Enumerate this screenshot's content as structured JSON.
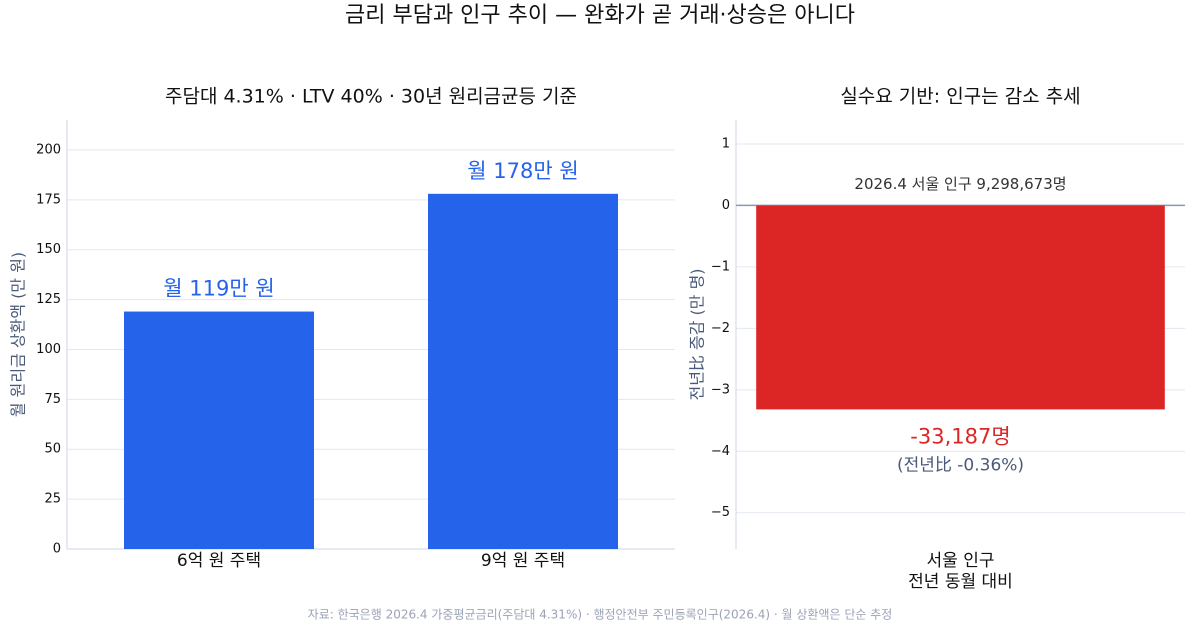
{
  "title": "금리 부담과 인구 추이 — 완화가 곧 거래·상승은 아니다",
  "source": "자료: 한국은행 2026.4 가중평균금리(주담대 4.31%) · 행정안전부 주민등록인구(2026.4) · 월 상환액은 단순 추정",
  "chart_data": [
    {
      "type": "bar",
      "title": "주담대 4.31% · LTV 40% · 30년 원리금균등 기준",
      "ylabel": "월 원리금 상환액 (만 원)",
      "categories": [
        "6억 원 주택",
        "9억 원 주택"
      ],
      "values": [
        119,
        178
      ],
      "value_labels": [
        "월 119만 원",
        "월 178만 원"
      ],
      "color": "#2563eb",
      "ylim": [
        0,
        215
      ],
      "yticks": [
        0,
        25,
        50,
        75,
        100,
        125,
        150,
        175,
        200
      ],
      "grid": true
    },
    {
      "type": "bar",
      "title": "실수요 기반: 인구는 감소 추세",
      "ylabel": "전년比 증감 (만 명)",
      "categories": [
        "서울 인구\n전년 동월 대비"
      ],
      "values": [
        -3.3187
      ],
      "value_labels": [
        "-33,187명"
      ],
      "annotation": "2026.4 서울 인구 9,298,673명",
      "note": "(전년比 -0.36%)",
      "color": "#dc2626",
      "ylim": [
        -5.59,
        1.39
      ],
      "yticks": [
        {
          "value": -5,
          "label": "−5"
        },
        {
          "value": -4,
          "label": "−4"
        },
        {
          "value": -3,
          "label": "−3"
        },
        {
          "value": -2,
          "label": "−2"
        },
        {
          "value": -1,
          "label": "−1"
        },
        0,
        1
      ],
      "grid": true
    }
  ]
}
